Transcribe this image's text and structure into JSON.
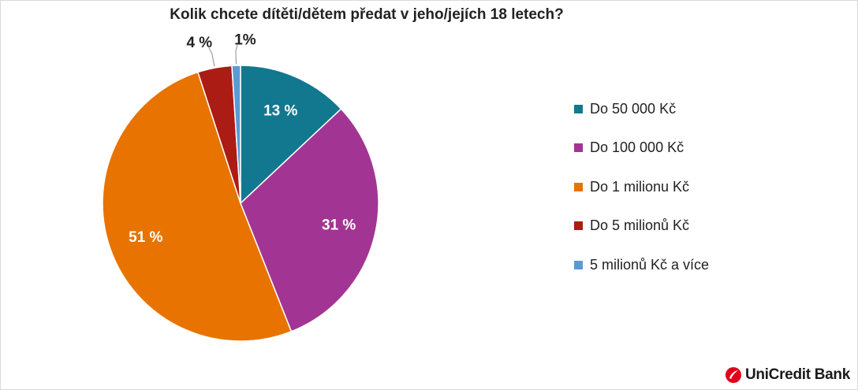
{
  "chart_data": {
    "type": "pie",
    "title": "Kolik chcete dítěti/dětem předat v jeho/jejích 18 letech?",
    "categories": [
      "Do 50 000 Kč",
      "Do 100 000 Kč",
      "Do 1 milionu Kč",
      "Do 5 milionů Kč",
      "5 milionů Kč a více"
    ],
    "values": [
      13,
      31,
      51,
      4,
      1
    ],
    "data_labels": [
      "13 %",
      "31 %",
      "51 %",
      "4 %",
      "1%"
    ],
    "colors": [
      "#12788f",
      "#a23593",
      "#e87300",
      "#aa1c14",
      "#5b9bd5"
    ],
    "legend_position": "right",
    "start_angle_deg": 0,
    "direction": "clockwise"
  },
  "brand": {
    "name": "UniCredit Bank",
    "logo_icon": "unicredit-logo-icon",
    "logo_color": "#e2001a"
  }
}
